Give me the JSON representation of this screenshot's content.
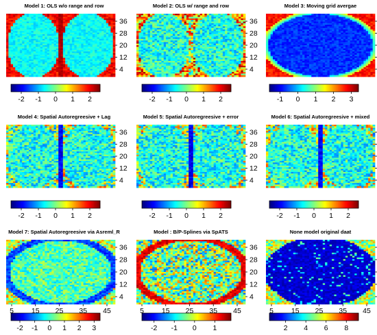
{
  "chart_data": [
    {
      "type": "heatmap",
      "title": "Model 1: OLS w/o range and row",
      "pattern": "ellipse_pair",
      "y_ticks": [
        "36",
        "28",
        "20",
        "12",
        "4"
      ],
      "x_ticks": [],
      "colorbar_ticks": [
        "-2",
        "-1",
        "0",
        "1",
        "2"
      ],
      "colorbar_range": [
        -2.6,
        2.6
      ]
    },
    {
      "type": "heatmap",
      "title": "Model 2: OLS w/ range and row",
      "pattern": "ellipse_pair_noisy",
      "y_ticks": [
        "36",
        "28",
        "20",
        "12",
        "4"
      ],
      "x_ticks": [],
      "colorbar_ticks": [
        "-2",
        "-1",
        "0",
        "1",
        "2"
      ],
      "colorbar_range": [
        -2.6,
        2.6
      ]
    },
    {
      "type": "heatmap",
      "title": "Model 3: Moving grid avergae",
      "pattern": "smooth_ellipse",
      "y_ticks": [
        "36",
        "28",
        "20",
        "12",
        "4"
      ],
      "x_ticks": [],
      "colorbar_ticks": [
        "-1",
        "0",
        "1",
        "2",
        "3"
      ],
      "colorbar_range": [
        -1.6,
        3.4
      ]
    },
    {
      "type": "heatmap",
      "title": "Model 4: Spatial Autoregreesive + Lag",
      "pattern": "ellipse_pair_faint",
      "y_ticks": [
        "36",
        "28",
        "20",
        "12",
        "4"
      ],
      "x_ticks": [],
      "colorbar_ticks": [
        "-2",
        "-1",
        "0",
        "1",
        "2"
      ],
      "colorbar_range": [
        -2.6,
        2.6
      ]
    },
    {
      "type": "heatmap",
      "title": "Model 5: Spatial Autoregreesive + error",
      "pattern": "ellipse_pair_faint",
      "y_ticks": [
        "36",
        "28",
        "20",
        "12",
        "4"
      ],
      "x_ticks": [],
      "colorbar_ticks": [
        "-2",
        "-1",
        "0",
        "1",
        "2"
      ],
      "colorbar_range": [
        -2.6,
        2.6
      ]
    },
    {
      "type": "heatmap",
      "title": "Model 6: Spatial Autoregreesive + mixed",
      "pattern": "ellipse_pair_faint",
      "y_ticks": [
        "36",
        "28",
        "20",
        "12",
        "4"
      ],
      "x_ticks": [],
      "colorbar_ticks": [
        "-2",
        "-1",
        "0",
        "1",
        "2"
      ],
      "colorbar_range": [
        -2.6,
        2.6
      ]
    },
    {
      "type": "heatmap",
      "title": "Model 7: Spatial Autoregreesive via Asreml_R",
      "pattern": "ellipse_asreml",
      "y_ticks": [
        "36",
        "28",
        "20",
        "12",
        "4"
      ],
      "x_ticks": [
        "5",
        "15",
        "25",
        "35",
        "45"
      ],
      "colorbar_ticks": [
        "-2",
        "-1",
        "0",
        "1",
        "2",
        "3"
      ],
      "colorbar_range": [
        -2.6,
        3.4
      ]
    },
    {
      "type": "heatmap",
      "title": "Model : B/P-Splines via SpATS",
      "pattern": "ellipse_ring",
      "y_ticks": [
        "36",
        "28",
        "20",
        "12",
        "4"
      ],
      "x_ticks": [
        "5",
        "15",
        "25",
        "35",
        "45"
      ],
      "colorbar_ticks": [
        "-2",
        "-1",
        "0",
        "1"
      ],
      "colorbar_range": [
        -2.6,
        1.8
      ]
    },
    {
      "type": "heatmap",
      "title": "None model original daat",
      "pattern": "dark_ellipse",
      "y_ticks": [
        "36",
        "28",
        "20",
        "12",
        "4"
      ],
      "x_ticks": [
        "5",
        "15",
        "25",
        "35",
        "45"
      ],
      "colorbar_ticks": [
        "2",
        "4",
        "6",
        "8"
      ],
      "colorbar_range": [
        0.4,
        9.2
      ]
    }
  ]
}
